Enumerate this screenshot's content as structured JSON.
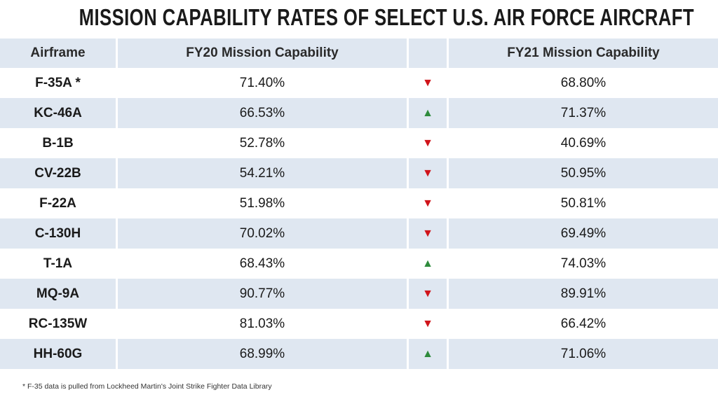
{
  "title": "MISSION CAPABILITY RATES OF SELECT U.S. AIR FORCE AIRCRAFT",
  "table": {
    "headers": [
      "Airframe",
      "FY20 Mission Capability",
      "FY21 Mission Capability"
    ],
    "rows": [
      [
        "F-35A *",
        "71.40%",
        "68.80%"
      ],
      [
        "KC-46A",
        "66.53%",
        "71.37%"
      ],
      [
        "B-1B",
        "52.78%",
        "40.69%"
      ],
      [
        "CV-22B",
        "54.21%",
        "50.95%"
      ],
      [
        "F-22A",
        "51.98%",
        "50.81%"
      ],
      [
        "C-130H",
        "70.02%",
        "69.49%"
      ],
      [
        "T-1A",
        "68.43%",
        "74.03%"
      ],
      [
        "MQ-9A",
        "90.77%",
        "89.91%"
      ],
      [
        "RC-135W",
        "81.03%",
        "66.42%"
      ],
      [
        "HH-60G",
        "68.99%",
        "71.06%"
      ]
    ]
  },
  "footnote": "* F-35 data is pulled from Lockheed Martin's Joint Strike Fighter Data Library"
}
